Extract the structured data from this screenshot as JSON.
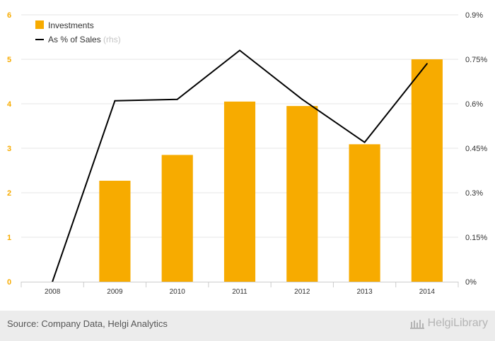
{
  "chart_data": {
    "type": "bar",
    "categories": [
      "2008",
      "2009",
      "2010",
      "2011",
      "2012",
      "2013",
      "2014"
    ],
    "series": [
      {
        "name": "Investments",
        "type": "bar",
        "axis": "left",
        "color": "#f7ab00",
        "values": [
          0,
          2.27,
          2.85,
          4.05,
          3.95,
          3.09,
          5.0
        ]
      },
      {
        "name": "As % of Sales",
        "suffix": "(rhs)",
        "type": "line",
        "axis": "right",
        "color": "#000000",
        "values": [
          0,
          0.61,
          0.615,
          0.78,
          0.615,
          0.47,
          0.735
        ]
      }
    ],
    "y_left": {
      "range": [
        0,
        6
      ],
      "ticks": [
        "0",
        "1",
        "2",
        "3",
        "4",
        "5",
        "6"
      ],
      "color": "#f7ab00"
    },
    "y_right": {
      "range": [
        0,
        0.9
      ],
      "ticks": [
        "0%",
        "0.15%",
        "0.3%",
        "0.45%",
        "0.6%",
        "0.75%",
        "0.9%"
      ]
    },
    "grid": true,
    "legend_position": "top-left"
  },
  "footer": {
    "source": "Source: Company Data, Helgi Analytics",
    "brand": "HelgiLibrary"
  }
}
